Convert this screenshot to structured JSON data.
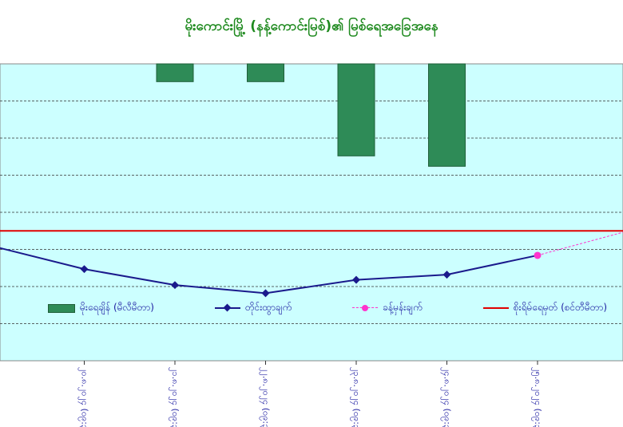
{
  "chart_data": {
    "type": "bar+line",
    "title": "မိုးကောင်းမြို့ (နန့်ကောင်းမြစ်)၏ မြစ်ရေအခြေအနေ",
    "categories": [
      "…",
      "၂၀.၈.၂၀၂၄ (၀၉:၃၀)",
      "၂၁.၈.၂၀၂၄ (၀၉:၃၀)",
      "၂၂.၈.၂၀၂၄ (၀၉:၃၀)",
      "၂၃.၈.၂၀၂၄ (၀၉:၃၀)",
      "၂၄.၈.၂၀၂၄ (၀၉:၃၀)",
      "၂၅.၈.၂၀၂၄ (၀၉:၃၀)",
      "…"
    ],
    "series": [
      {
        "name": "မိုးရေချိန် (မီလီမီတာ)",
        "kind": "bar",
        "values": [
          null,
          null,
          1.2,
          1.2,
          6.2,
          6.9,
          null,
          null
        ]
      },
      {
        "name": "တိုင်းထွာချက်",
        "kind": "line",
        "values": [
          9.08,
          8.47,
          8.04,
          7.82,
          8.18,
          8.32,
          8.84,
          null
        ]
      },
      {
        "name": "ခန့်မှန်းချက်",
        "kind": "dashed",
        "values": [
          null,
          null,
          null,
          null,
          null,
          null,
          8.84,
          9.5
        ]
      },
      {
        "name": "စိုးရိမ်ရေမှတ် (စင်တီမီတာ)",
        "kind": "threshold",
        "value": 9.5
      }
    ],
    "bar_axis": {
      "min": 0,
      "max": 20,
      "reversed": true
    },
    "line_axis": {
      "min": 6,
      "max": 14
    },
    "grid": true,
    "legend_position": "bottom",
    "colors": {
      "plot_bg": "#ccffff",
      "bar": "#2e8b57",
      "line": "#1a1a8c",
      "forecast": "#ff33cc",
      "threshold": "#e00000",
      "title": "#1f8a1f",
      "text": "#1a1aa0"
    }
  }
}
